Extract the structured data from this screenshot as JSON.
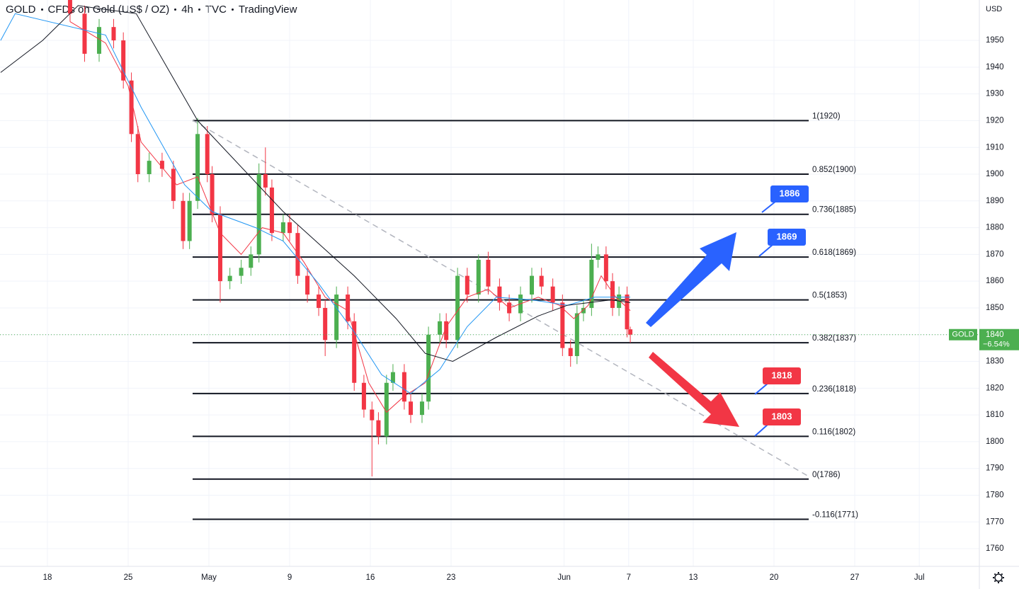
{
  "header": {
    "symbol": "GOLD",
    "description": "CFDs on Gold (US$ / OZ)",
    "interval": "4h",
    "source": "TVC",
    "platform": "TradingView"
  },
  "chart_data": {
    "type": "candlestick",
    "currency": "USD",
    "up_color": "#4caf50",
    "down_color": "#f23645",
    "x": [
      1.4,
      2.3,
      3.2,
      4.1,
      4.7,
      5.2,
      5.6,
      6.3,
      7.1,
      7.8,
      8.4,
      8.8,
      9.3,
      9.9,
      10.2,
      10.7,
      11.3,
      12.0,
      12.6,
      13.1,
      13.5,
      13.9,
      14.6,
      15.0,
      15.5,
      16.1,
      16.8,
      17.2,
      17.9,
      18.6,
      19.0,
      19.6,
      20.1,
      20.5,
      21.0,
      21.4,
      22.1,
      22.5,
      23.2,
      23.6,
      24.3,
      24.7,
      25.4,
      26.0,
      26.7,
      27.3,
      28.0,
      28.6,
      29.3,
      30.0,
      30.6,
      31.3,
      31.9,
      32.4,
      32.8,
      33.2,
      33.7,
      34.1,
      34.6,
      35.0,
      35.4,
      35.9,
      36.1
    ],
    "open": [
      1966,
      1960,
      1945,
      1955,
      1950,
      1935,
      1915,
      1900,
      1905,
      1902,
      1890,
      1875,
      1890,
      1915,
      1900,
      1885,
      1860,
      1862,
      1865,
      1870,
      1900,
      1895,
      1878,
      1882,
      1878,
      1862,
      1855,
      1850,
      1838,
      1855,
      1845,
      1822,
      1812,
      1808,
      1802,
      1822,
      1826,
      1815,
      1810,
      1815,
      1840,
      1845,
      1838,
      1862,
      1855,
      1868,
      1858,
      1852,
      1848,
      1855,
      1862,
      1858,
      1852,
      1835,
      1832,
      1848,
      1850,
      1868,
      1870,
      1860,
      1850,
      1855,
      1842
    ],
    "high": [
      1969,
      1963,
      1958,
      1958,
      1953,
      1938,
      1918,
      1908,
      1908,
      1905,
      1893,
      1893,
      1921,
      1918,
      1903,
      1888,
      1865,
      1868,
      1873,
      1904,
      1910,
      1898,
      1885,
      1885,
      1881,
      1865,
      1858,
      1853,
      1858,
      1858,
      1848,
      1825,
      1815,
      1811,
      1825,
      1829,
      1829,
      1818,
      1818,
      1843,
      1848,
      1848,
      1865,
      1865,
      1870,
      1871,
      1861,
      1855,
      1858,
      1865,
      1865,
      1861,
      1855,
      1838,
      1851,
      1853,
      1874,
      1873,
      1873,
      1863,
      1858,
      1858,
      1843
    ],
    "low": [
      1957,
      1942,
      1942,
      1947,
      1932,
      1912,
      1897,
      1897,
      1899,
      1887,
      1872,
      1872,
      1887,
      1897,
      1882,
      1852,
      1857,
      1859,
      1862,
      1867,
      1892,
      1875,
      1875,
      1875,
      1859,
      1852,
      1847,
      1832,
      1835,
      1842,
      1819,
      1809,
      1787,
      1799,
      1799,
      1819,
      1812,
      1807,
      1807,
      1812,
      1837,
      1835,
      1835,
      1852,
      1852,
      1855,
      1849,
      1845,
      1845,
      1852,
      1855,
      1849,
      1832,
      1828,
      1829,
      1845,
      1847,
      1865,
      1857,
      1847,
      1847,
      1839,
      1837
    ],
    "close": [
      1960,
      1945,
      1955,
      1950,
      1935,
      1915,
      1900,
      1905,
      1902,
      1890,
      1875,
      1890,
      1915,
      1900,
      1885,
      1860,
      1862,
      1865,
      1870,
      1900,
      1895,
      1878,
      1882,
      1878,
      1862,
      1855,
      1850,
      1838,
      1855,
      1845,
      1822,
      1812,
      1808,
      1802,
      1822,
      1826,
      1815,
      1810,
      1815,
      1840,
      1845,
      1838,
      1862,
      1855,
      1868,
      1858,
      1852,
      1848,
      1855,
      1862,
      1858,
      1852,
      1835,
      1832,
      1848,
      1850,
      1868,
      1870,
      1860,
      1850,
      1855,
      1842,
      1840
    ],
    "series": [
      {
        "color": "#f23645",
        "x": [
          1.4,
          3.6,
          5.0,
          5.8,
          8.0,
          9.3,
          10.7,
          12.0,
          13.3,
          14.6,
          15.9,
          17.2,
          18.6,
          19.9,
          21.0,
          22.1,
          23.4,
          24.7,
          26.0,
          27.3,
          28.6,
          30.4,
          31.7,
          32.6,
          33.5,
          34.3,
          35.2,
          36.1
        ],
        "values": [
          1957,
          1949,
          1933,
          1912,
          1896,
          1899,
          1878,
          1870,
          1880,
          1878,
          1867,
          1854,
          1849,
          1822,
          1811,
          1817,
          1822,
          1843,
          1854,
          1857,
          1850,
          1854,
          1851,
          1846,
          1851,
          1862,
          1854,
          1849
        ]
      },
      {
        "color": "#2196f3",
        "x": [
          -2.9,
          -2.0,
          3.6,
          5.8,
          8.5,
          10.2,
          12.9,
          14.6,
          16.8,
          19.0,
          20.7,
          22.5,
          24.3,
          26.0,
          27.8,
          30.0,
          32.2,
          33.9,
          36.1
        ],
        "values": [
          1950,
          1960,
          1952,
          1925,
          1896,
          1886,
          1880,
          1875,
          1859,
          1841,
          1825,
          1818,
          1827,
          1843,
          1854,
          1853,
          1851,
          1854,
          1854
        ]
      },
      {
        "color": "#131722",
        "x": [
          -2.9,
          -0.3,
          1.9,
          5.5,
          9.3,
          14.6,
          19.0,
          21.6,
          23.4,
          25.1,
          27.8,
          30.4,
          32.2,
          34.9,
          36.1
        ],
        "values": [
          1938,
          1950,
          1963,
          1960,
          1920,
          1886,
          1862,
          1846,
          1833,
          1830,
          1839,
          1847,
          1851,
          1853,
          1852
        ]
      }
    ],
    "xlim": [
      -2.94,
      57.72
    ],
    "xticks": [
      {
        "value": 0,
        "label": "18"
      },
      {
        "value": 5,
        "label": "25"
      },
      {
        "value": 10,
        "label": "May"
      },
      {
        "value": 15,
        "label": "9"
      },
      {
        "value": 20,
        "label": "16"
      },
      {
        "value": 25,
        "label": "23"
      },
      {
        "value": 32,
        "label": "Jun"
      },
      {
        "value": 36,
        "label": "7"
      },
      {
        "value": 40,
        "label": "13"
      },
      {
        "value": 45,
        "label": "20"
      },
      {
        "value": 50,
        "label": "27"
      },
      {
        "value": 54,
        "label": "Jul"
      }
    ],
    "ylim": [
      1753.4,
      1965.1
    ],
    "yticks": [
      1760,
      1770,
      1780,
      1790,
      1800,
      1810,
      1820,
      1830,
      1840,
      1850,
      1860,
      1870,
      1880,
      1890,
      1900,
      1910,
      1920,
      1930,
      1940,
      1950
    ],
    "grid": true,
    "fib_levels": [
      {
        "value": 1920,
        "label": "1(1920)"
      },
      {
        "value": 1900,
        "label": "0.852(1900)"
      },
      {
        "value": 1885,
        "label": "0.736(1885)"
      },
      {
        "value": 1869,
        "label": "0.618(1869)"
      },
      {
        "value": 1853,
        "label": "0.5(1853)"
      },
      {
        "value": 1837,
        "label": "0.382(1837)"
      },
      {
        "value": 1818,
        "label": "0.236(1818)"
      },
      {
        "value": 1802,
        "label": "0.116(1802)"
      },
      {
        "value": 1786,
        "label": "0(1786)"
      },
      {
        "value": 1771,
        "label": "-0.116(1771)"
      }
    ],
    "callouts": [
      {
        "label": "1886",
        "color": "#2962ff"
      },
      {
        "label": "1869",
        "color": "#2962ff"
      },
      {
        "label": "1818",
        "color": "#f23645"
      },
      {
        "label": "1803",
        "color": "#f23645"
      }
    ],
    "last_price": 1840,
    "last_symbol": "GOLD",
    "change": "−6.54%",
    "last_color": "#4caf50"
  }
}
